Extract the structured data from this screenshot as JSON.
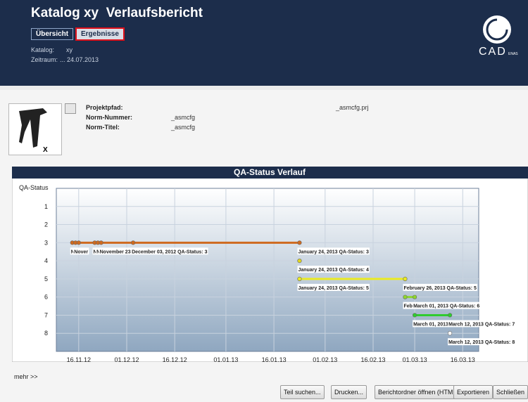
{
  "header": {
    "title": "Katalog xy  Verlaufsbericht",
    "tabs": [
      "Übersicht",
      "Ergebnisse"
    ],
    "catalog_label": "Katalog:",
    "catalog_value": "xy",
    "period_label": "Zeitraum:",
    "period_value": "... 24.07.2013",
    "logo": {
      "main": "CAD",
      "sub": "ENAS"
    }
  },
  "info": {
    "thumbnail_label": "X",
    "rows": [
      [
        "Projektpfad:",
        "_asmcfg.prj"
      ],
      [
        "Norm-Nummer:",
        "_asmcfg"
      ],
      [
        "Norm-Titel:",
        "_asmcfg"
      ]
    ]
  },
  "chart_data": {
    "type": "line",
    "title": "QA-Status Verlauf",
    "y_label": "QA-Status",
    "ylim": [
      0,
      9
    ],
    "y_inverted": true,
    "yticks": [
      1,
      2,
      3,
      4,
      5,
      6,
      7,
      8
    ],
    "xlim": [
      "2012-11-09",
      "2013-03-21"
    ],
    "xticks": [
      {
        "value": "2012-11-16",
        "label": "16.11.12"
      },
      {
        "value": "2012-12-01",
        "label": "01.12.12"
      },
      {
        "value": "2012-12-16",
        "label": "16.12.12"
      },
      {
        "value": "2013-01-01",
        "label": "01.01.13"
      },
      {
        "value": "2013-01-16",
        "label": "16.01.13"
      },
      {
        "value": "2013-02-01",
        "label": "01.02.13"
      },
      {
        "value": "2013-02-16",
        "label": "16.02.13"
      },
      {
        "value": "2013-03-01",
        "label": "01.03.13"
      },
      {
        "value": "2013-03-16",
        "label": "16.03.13"
      }
    ],
    "grid": true,
    "series": [
      {
        "color": "#cf6a1f",
        "x": [
          "2012-11-14",
          "2012-11-15",
          "2012-11-16",
          "2012-11-21",
          "2012-11-22",
          "2012-11-23",
          "2012-12-03",
          "2013-01-24"
        ],
        "values": [
          3,
          3,
          3,
          3,
          3,
          3,
          3,
          3
        ],
        "value_labels": [
          "N",
          "Nover",
          null,
          "N",
          "N",
          "November 23",
          "December 03, 2012 QA-Status: 3",
          "January 24, 2013 QA-Status: 3"
        ]
      },
      {
        "color": "#e0d620",
        "x": [
          "2013-01-24"
        ],
        "values": [
          4
        ],
        "value_labels": [
          "January 24, 2013 QA-Status: 4"
        ]
      },
      {
        "color": "#eaea22",
        "x": [
          "2013-01-24",
          "2013-02-26"
        ],
        "values": [
          5,
          5
        ],
        "value_labels": [
          "January 24, 2013 QA-Status: 5",
          "February 26, 2013 QA-Status: 5"
        ]
      },
      {
        "color": "#8fd62e",
        "x": [
          "2013-02-26",
          "2013-03-01"
        ],
        "values": [
          6,
          6
        ],
        "value_labels": [
          "Feb",
          "March 01, 2013 QA-Status: 6"
        ]
      },
      {
        "color": "#2fcc2f",
        "x": [
          "2013-03-01",
          "2013-03-12"
        ],
        "values": [
          7,
          7
        ],
        "value_labels": [
          "March 01, 2013",
          "March 12, 2013 QA-Status: 7"
        ]
      },
      {
        "color": "#ffffff",
        "x": [
          "2013-03-12"
        ],
        "values": [
          8
        ],
        "value_labels": [
          "March 12, 2013 QA-Status: 8"
        ]
      }
    ]
  },
  "more": "mehr >>",
  "buttons": [
    "Teil suchen...",
    "Drucken...",
    "Berichtordner öffnen (HTML)",
    "Exportieren",
    "Schließen"
  ]
}
